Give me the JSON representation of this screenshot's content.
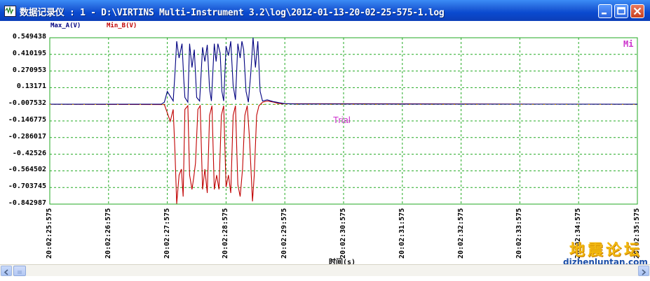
{
  "window": {
    "title": "数据记录仪 : 1 - D:\\VIRTINS Multi-Instrument 3.2\\log\\2012-01-13-20-02-25-575-1.log",
    "title_bar_color": "#1f5fd8",
    "controls": [
      "minimize-icon",
      "maximize-icon",
      "close-icon"
    ]
  },
  "overlay": {
    "mi_label": "Mi",
    "trial_label": "Trial",
    "watermark_text": "地震论坛",
    "watermark_url": "dizhenluntan.com"
  },
  "chart_data": {
    "type": "line",
    "xlabel": "时间(s)",
    "ylabel": "",
    "ylim": [
      -0.842987,
      0.549438
    ],
    "yticks": [
      "0.549438",
      "0.410195",
      "0.270953",
      "0.13171",
      "-0.007532",
      "-0.146775",
      "-0.286017",
      "-0.42526",
      "-0.564502",
      "-0.703745",
      "-0.842987"
    ],
    "xticks": [
      "20:02:25:575",
      "20:02:26:575",
      "20:02:27:575",
      "20:02:28:575",
      "20:02:29:575",
      "20:02:30:575",
      "20:02:31:575",
      "20:02:32:575",
      "20:02:33:575",
      "20:02:34:575",
      "20:02:35:575"
    ],
    "xlim": [
      0,
      10
    ],
    "grid": true,
    "grid_color": "#22aa22",
    "legend_position": "top-left",
    "series": [
      {
        "name": "Max_A(V)",
        "color": "#000080",
        "points": [
          [
            0,
            -0.007
          ],
          [
            1.9,
            -0.007
          ],
          [
            1.95,
            0.01
          ],
          [
            2.0,
            0.1
          ],
          [
            2.05,
            0.06
          ],
          [
            2.1,
            0.02
          ],
          [
            2.13,
            0.25
          ],
          [
            2.16,
            0.52
          ],
          [
            2.2,
            0.38
          ],
          [
            2.25,
            0.5
          ],
          [
            2.28,
            0.2
          ],
          [
            2.3,
            0.05
          ],
          [
            2.35,
            0.01
          ],
          [
            2.38,
            0.5
          ],
          [
            2.42,
            0.3
          ],
          [
            2.46,
            0.45
          ],
          [
            2.5,
            0.05
          ],
          [
            2.55,
            0.02
          ],
          [
            2.6,
            0.47
          ],
          [
            2.64,
            0.35
          ],
          [
            2.68,
            0.49
          ],
          [
            2.72,
            0.12
          ],
          [
            2.75,
            0.02
          ],
          [
            2.8,
            0.5
          ],
          [
            2.83,
            0.35
          ],
          [
            2.86,
            0.5
          ],
          [
            2.9,
            0.42
          ],
          [
            2.93,
            0.1
          ],
          [
            2.96,
            0.02
          ],
          [
            3.0,
            0.48
          ],
          [
            3.04,
            0.4
          ],
          [
            3.08,
            0.52
          ],
          [
            3.12,
            0.15
          ],
          [
            3.16,
            0.03
          ],
          [
            3.2,
            0.5
          ],
          [
            3.24,
            0.38
          ],
          [
            3.27,
            0.52
          ],
          [
            3.3,
            0.45
          ],
          [
            3.34,
            0.1
          ],
          [
            3.38,
            0.01
          ],
          [
            3.42,
            0.25
          ],
          [
            3.46,
            0.55
          ],
          [
            3.5,
            0.3
          ],
          [
            3.54,
            0.52
          ],
          [
            3.58,
            0.1
          ],
          [
            3.62,
            0.02
          ],
          [
            3.7,
            0.03
          ],
          [
            3.8,
            0.015
          ],
          [
            4.0,
            -0.002
          ],
          [
            4.2,
            -0.005
          ],
          [
            10,
            -0.007
          ]
        ]
      },
      {
        "name": "Min_B(V)",
        "color": "#c00000",
        "points": [
          [
            0,
            -0.007
          ],
          [
            1.95,
            -0.01
          ],
          [
            2.0,
            -0.08
          ],
          [
            2.05,
            -0.15
          ],
          [
            2.1,
            -0.05
          ],
          [
            2.13,
            -0.4
          ],
          [
            2.16,
            -0.84
          ],
          [
            2.2,
            -0.6
          ],
          [
            2.24,
            -0.55
          ],
          [
            2.27,
            -0.78
          ],
          [
            2.3,
            -0.05
          ],
          [
            2.35,
            -0.02
          ],
          [
            2.38,
            -0.6
          ],
          [
            2.42,
            -0.72
          ],
          [
            2.45,
            -0.62
          ],
          [
            2.48,
            -0.5
          ],
          [
            2.52,
            -0.05
          ],
          [
            2.56,
            -0.02
          ],
          [
            2.6,
            -0.72
          ],
          [
            2.64,
            -0.55
          ],
          [
            2.68,
            -0.75
          ],
          [
            2.72,
            -0.1
          ],
          [
            2.76,
            -0.02
          ],
          [
            2.8,
            -0.72
          ],
          [
            2.84,
            -0.6
          ],
          [
            2.88,
            -0.72
          ],
          [
            2.92,
            -0.1
          ],
          [
            2.96,
            -0.02
          ],
          [
            3.0,
            -0.7
          ],
          [
            3.04,
            -0.6
          ],
          [
            3.08,
            -0.75
          ],
          [
            3.12,
            -0.1
          ],
          [
            3.16,
            -0.02
          ],
          [
            3.2,
            -0.68
          ],
          [
            3.24,
            -0.78
          ],
          [
            3.28,
            -0.55
          ],
          [
            3.32,
            -0.1
          ],
          [
            3.36,
            -0.02
          ],
          [
            3.4,
            -0.3
          ],
          [
            3.45,
            -0.82
          ],
          [
            3.48,
            -0.6
          ],
          [
            3.52,
            -0.1
          ],
          [
            3.56,
            -0.02
          ],
          [
            3.62,
            0.01
          ],
          [
            3.7,
            0.02
          ],
          [
            3.8,
            0.012
          ],
          [
            3.9,
            -0.002
          ],
          [
            10,
            -0.007
          ]
        ]
      }
    ]
  }
}
